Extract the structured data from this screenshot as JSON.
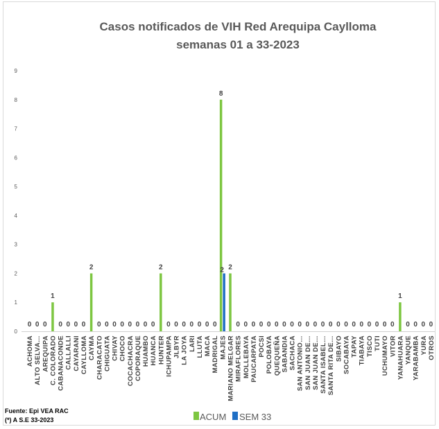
{
  "chart_data": {
    "type": "bar",
    "title": "Casos notificados de VIH Red Arequipa Caylloma",
    "subtitle": "semanas 01 a 33-2023",
    "xlabel": "",
    "ylabel": "",
    "ylim": [
      0,
      9
    ],
    "yticks": [
      "0",
      "1",
      "2",
      "3",
      "4",
      "5",
      "6",
      "7",
      "8",
      "9"
    ],
    "grid": false,
    "legend_position": "bottom",
    "categories": [
      "ACHOMA",
      "ALTO SELVA…",
      "AREQUIPA",
      "C. COLORADO",
      "CABANACONDE",
      "CALLALLI",
      "CAYARANI",
      "CAYLLOMA",
      "CAYMA",
      "CHARACATO",
      "CHIGUATA",
      "CHIVAY",
      "CHOCO",
      "COCACHACRA",
      "COPORAQUE",
      "HUAMBO",
      "HUANCA",
      "HUNTER",
      "ICHUPAMPA",
      "JLBYR",
      "LA JOYA",
      "LARI",
      "LLUTA",
      "MACA",
      "MADRIGAL",
      "MAJES",
      "MARIANO MELGAR",
      "MIRAFLORES",
      "MOLLEBAYA",
      "PAUCARPATA",
      "POCSI",
      "POLOBAYA",
      "QUEQUEÑA",
      "SABANDIA",
      "SACHACA",
      "SAN ANTONIO…",
      "SAN JUAN DE…",
      "SAN JUAN DE…",
      "SANTA ISABEL…",
      "SANTA RITA DE…",
      "SIBAYO",
      "SOCABAYA",
      "TAPAY",
      "TIABAYA",
      "TISCO",
      "TUTI",
      "UCHUMAYO",
      "VITOR",
      "YANAHUARA",
      "YANQUE",
      "YARABAMBA",
      "YURA",
      "OTROS"
    ],
    "series": [
      {
        "name": "ACUM",
        "color": "#7dc641",
        "values": [
          0,
          0,
          0,
          1,
          0,
          0,
          0,
          0,
          2,
          0,
          0,
          0,
          0,
          0,
          0,
          0,
          0,
          2,
          0,
          0,
          0,
          0,
          0,
          0,
          0,
          8,
          2,
          0,
          0,
          0,
          0,
          0,
          0,
          0,
          0,
          0,
          0,
          0,
          0,
          0,
          0,
          0,
          0,
          0,
          0,
          0,
          0,
          0,
          1,
          0,
          0,
          0,
          0
        ]
      },
      {
        "name": "SEM 33",
        "color": "#1f6fc5",
        "values": [
          null,
          null,
          null,
          null,
          null,
          null,
          null,
          null,
          null,
          null,
          null,
          null,
          null,
          null,
          null,
          null,
          null,
          null,
          null,
          null,
          null,
          null,
          null,
          null,
          null,
          2,
          null,
          null,
          null,
          null,
          null,
          null,
          null,
          null,
          null,
          null,
          null,
          null,
          null,
          null,
          null,
          null,
          null,
          null,
          null,
          null,
          null,
          null,
          null,
          null,
          null,
          null,
          null
        ]
      }
    ]
  },
  "legend": {
    "acum": "ACUM",
    "sem33": "SEM 33"
  },
  "source": {
    "line1": "Fuente: Epi VEA RAC",
    "line2": "(*) A S.E 33-2023"
  }
}
